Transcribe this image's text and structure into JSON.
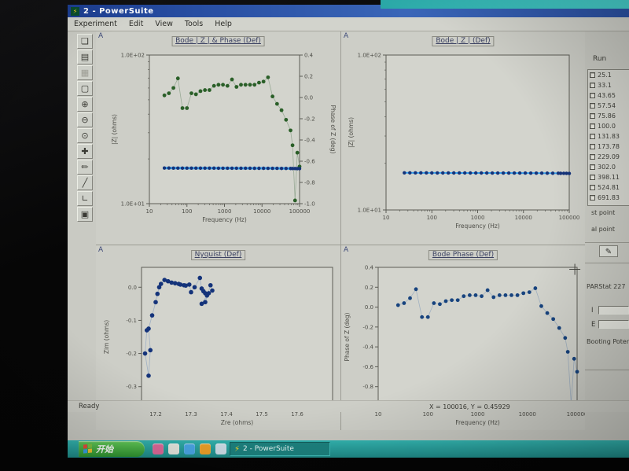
{
  "window": {
    "title": "2 - PowerSuite",
    "menu": [
      "Experiment",
      "Edit",
      "View",
      "Tools",
      "Help"
    ]
  },
  "toolbar": {
    "icons": [
      {
        "name": "new-document-icon",
        "glyph": "❏",
        "disabled": false
      },
      {
        "name": "open-file-icon",
        "glyph": "▤",
        "disabled": false
      },
      {
        "name": "print-icon",
        "glyph": "▦",
        "disabled": true
      },
      {
        "name": "select-region-icon",
        "glyph": "▢",
        "disabled": false
      },
      {
        "name": "zoom-in-icon",
        "glyph": "⊕",
        "disabled": false
      },
      {
        "name": "zoom-out-icon",
        "glyph": "⊖",
        "disabled": false
      },
      {
        "name": "zoom-window-icon",
        "glyph": "⊙",
        "disabled": false
      },
      {
        "name": "pan-icon",
        "glyph": "✚",
        "disabled": false
      },
      {
        "name": "pen-icon",
        "glyph": "✏",
        "disabled": false
      },
      {
        "name": "line-tool-icon",
        "glyph": "╱",
        "disabled": false
      },
      {
        "name": "axes-tool-icon",
        "glyph": "∟",
        "disabled": false
      },
      {
        "name": "color-tool-icon",
        "glyph": "▣",
        "disabled": false
      }
    ]
  },
  "sidebar": {
    "run_label": "Run",
    "runs": [
      "25.1",
      "33.1",
      "43.65",
      "57.54",
      "75.86",
      "100.0",
      "131.83",
      "173.78",
      "229.09",
      "302.0",
      "398.11",
      "524.81",
      "691.83"
    ],
    "start_point_label": "st point",
    "end_point_label": "al point",
    "instrument_label": "PARStat 227",
    "current_label": "I",
    "potential_label": "E",
    "booting_label": "Booting Potent",
    "eraser_glyph": "✎"
  },
  "status_bar": {
    "ready": "Ready",
    "coords": "X = 100016, Y = 0.45929"
  },
  "taskbar": {
    "start_label": "开始",
    "task_button_label": "2 - PowerSuite",
    "task_button_glyph": "⚡",
    "quicklaunch": [
      {
        "name": "quicklaunch-msn-icon",
        "color": "#e06a9a"
      },
      {
        "name": "quicklaunch-folder-icon",
        "color": "#e8e8e0"
      },
      {
        "name": "quicklaunch-ie-icon",
        "color": "#4aa8e8"
      },
      {
        "name": "quicklaunch-player-icon",
        "color": "#f0a228"
      },
      {
        "name": "quicklaunch-desktop-icon",
        "color": "#cfe0ea"
      }
    ]
  },
  "colors": {
    "titlebar_blue": "#1d3f94",
    "taskbar_teal": "#27a09c",
    "start_green": "#3fae3c",
    "phase_green": "#2a5f28",
    "impedance_blue_dot": "#14337a",
    "impedance_blue_line": "#35a0ef"
  },
  "chart_data": [
    {
      "type": "line",
      "title": "Bode | Z | & Phase (Def)",
      "corner_label": "A",
      "x": {
        "scale": "log",
        "min": 10,
        "max": 100000,
        "ticks": [
          10,
          100,
          1000,
          10000,
          100000
        ],
        "tick_labels": [
          "10",
          "100",
          "1000",
          "10000",
          "100000"
        ],
        "label": "Frequency (Hz)"
      },
      "y": {
        "scale": "log",
        "min": 10,
        "max": 100,
        "ticks": [
          10,
          100
        ],
        "tick_labels": [
          "1.0E+01",
          "1.0E+02"
        ],
        "label": "|Z| (ohms)"
      },
      "y2": {
        "scale": "linear",
        "min": -1.0,
        "max": 0.4,
        "ticks": [
          0.4,
          0.2,
          0,
          -0.2,
          -0.4,
          -0.6,
          -0.8,
          -1.0
        ],
        "tick_labels": [
          "0.4",
          "0.2",
          "0.0",
          "-0.2",
          "-0.4",
          "-0.6",
          "-0.8",
          "-1.0"
        ],
        "label": "Phase of Z (deg)"
      },
      "series": [
        {
          "name": "phase-of-z",
          "axis": "y2",
          "color": "#2a5f28",
          "line_color": "#9aab97",
          "line_width": 0.8,
          "dot_r": 2.4,
          "x": [
            25.1,
            33.1,
            43.7,
            57.5,
            75.9,
            100,
            131.8,
            173.8,
            229.1,
            302,
            398,
            525,
            692,
            912,
            1202,
            1585,
            2089,
            2754,
            3631,
            4786,
            6310,
            8318,
            10965,
            14454,
            19055,
            25119,
            33113,
            43652,
            57544,
            65000,
            75858,
            87096,
            100000
          ],
          "y": [
            0.02,
            0.04,
            0.09,
            0.18,
            -0.1,
            -0.1,
            0.04,
            0.03,
            0.06,
            0.07,
            0.07,
            0.11,
            0.12,
            0.12,
            0.11,
            0.17,
            0.1,
            0.12,
            0.12,
            0.12,
            0.12,
            0.14,
            0.15,
            0.19,
            0.01,
            -0.06,
            -0.12,
            -0.21,
            -0.31,
            -0.45,
            -0.97,
            -0.52,
            -0.65
          ]
        },
        {
          "name": "z-magnitude",
          "axis": "y",
          "color": "#14337a",
          "line_color": "#35a0ef",
          "line_width": 3,
          "dot_r": 2.2,
          "x": [
            25.1,
            33.1,
            43.7,
            57.5,
            75.9,
            100,
            131.8,
            173.8,
            229.1,
            302,
            398,
            525,
            692,
            912,
            1202,
            1585,
            2089,
            2754,
            3631,
            4786,
            6310,
            8318,
            10965,
            14454,
            19055,
            25119,
            33113,
            43652,
            57544,
            65000,
            75858,
            87096,
            100000
          ],
          "y": [
            17.36,
            17.36,
            17.35,
            17.35,
            17.35,
            17.34,
            17.34,
            17.34,
            17.33,
            17.33,
            17.33,
            17.33,
            17.32,
            17.32,
            17.32,
            17.32,
            17.31,
            17.31,
            17.31,
            17.31,
            17.3,
            17.3,
            17.3,
            17.29,
            17.29,
            17.28,
            17.27,
            17.26,
            17.25,
            17.24,
            17.23,
            17.22,
            17.2
          ]
        }
      ]
    },
    {
      "type": "line",
      "title": "Bode | Z | (Def)",
      "corner_label": "A",
      "x": {
        "scale": "log",
        "min": 10,
        "max": 100000,
        "ticks": [
          10,
          100,
          1000,
          10000,
          100000
        ],
        "tick_labels": [
          "10",
          "100",
          "1000",
          "10000",
          "100000"
        ],
        "label": "Frequency (Hz)"
      },
      "y": {
        "scale": "log",
        "min": 10,
        "max": 100,
        "ticks": [
          10,
          100
        ],
        "tick_labels": [
          "1.0E+01",
          "1.0E+02"
        ],
        "label": "|Z| (ohms)"
      },
      "series": [
        {
          "name": "z-magnitude",
          "axis": "y",
          "color": "#14337a",
          "line_color": "#35a0ef",
          "line_width": 2,
          "dot_r": 2.2,
          "x": [
            25.1,
            33.1,
            43.7,
            57.5,
            75.9,
            100,
            131.8,
            173.8,
            229.1,
            302,
            398,
            525,
            692,
            912,
            1202,
            1585,
            2089,
            2754,
            3631,
            4786,
            6310,
            8318,
            10965,
            14454,
            19055,
            25119,
            33113,
            43652,
            57544,
            65000,
            75858,
            87096,
            100000
          ],
          "y": [
            17.36,
            17.36,
            17.35,
            17.35,
            17.35,
            17.34,
            17.34,
            17.34,
            17.33,
            17.33,
            17.33,
            17.33,
            17.32,
            17.32,
            17.32,
            17.32,
            17.31,
            17.31,
            17.31,
            17.31,
            17.3,
            17.3,
            17.3,
            17.29,
            17.29,
            17.28,
            17.27,
            17.26,
            17.25,
            17.24,
            17.23,
            17.22,
            17.2
          ]
        }
      ]
    },
    {
      "type": "line",
      "title": "Nyquist (Def)",
      "corner_label": "A",
      "x": {
        "scale": "linear",
        "min": 17.16,
        "max": 17.7,
        "ticks": [
          17.2,
          17.3,
          17.4,
          17.5,
          17.6
        ],
        "tick_labels": [
          "17.2",
          "17.3",
          "17.4",
          "17.5",
          "17.6"
        ],
        "label": "Zre (ohms)"
      },
      "y": {
        "scale": "linear",
        "min": -0.36,
        "max": 0.06,
        "ticks": [
          0,
          -0.1,
          -0.2,
          -0.3
        ],
        "tick_labels": [
          "0.0",
          "-0.1",
          "-0.2",
          "-0.3"
        ],
        "label": "Zim (ohms)"
      },
      "series": [
        {
          "name": "nyquist-impedance",
          "axis": "y",
          "color": "#14337a",
          "line_color": "#9fb0c4",
          "line_width": 0.8,
          "dot_r": 2.8,
          "x": [
            17.175,
            17.17,
            17.18,
            17.185,
            17.18,
            17.19,
            17.2,
            17.205,
            17.21,
            17.215,
            17.225,
            17.235,
            17.245,
            17.255,
            17.265,
            17.27,
            17.28,
            17.285,
            17.295,
            17.3,
            17.31,
            17.325,
            17.33,
            17.335,
            17.34,
            17.345,
            17.33,
            17.35,
            17.34,
            17.355,
            17.36
          ],
          "y": [
            -0.13,
            -0.2,
            -0.267,
            -0.19,
            -0.125,
            -0.085,
            -0.045,
            -0.02,
            0.0,
            0.01,
            0.022,
            0.018,
            0.014,
            0.012,
            0.01,
            0.008,
            0.006,
            0.005,
            0.008,
            -0.015,
            0.0,
            0.028,
            -0.004,
            -0.012,
            -0.018,
            -0.025,
            -0.05,
            -0.018,
            -0.045,
            0.006,
            -0.01
          ]
        }
      ]
    },
    {
      "type": "line",
      "title": "Bode Phase (Def)",
      "corner_label": "A",
      "x": {
        "scale": "log",
        "min": 10,
        "max": 100000,
        "ticks": [
          10,
          100,
          1000,
          10000,
          100000
        ],
        "tick_labels": [
          "10",
          "100",
          "1000",
          "10000",
          "100000"
        ],
        "label": "Frequency (Hz)"
      },
      "y": {
        "scale": "linear",
        "min": -1.0,
        "max": 0.4,
        "ticks": [
          0.4,
          0.2,
          0,
          -0.2,
          -0.4,
          -0.6,
          -0.8,
          -1.0
        ],
        "tick_labels": [
          "0.4",
          "0.2",
          "0.0",
          "-0.2",
          "-0.4",
          "-0.6",
          "-0.8",
          "-1.0"
        ],
        "label": "Phase of Z (deg)"
      },
      "cursor": {
        "x": 90000,
        "y": 0.38
      },
      "series": [
        {
          "name": "phase-of-z",
          "axis": "y",
          "color": "#17437e",
          "line_color": "#a2b2c2",
          "line_width": 0.8,
          "dot_r": 2.4,
          "x": [
            25.1,
            33.1,
            43.7,
            57.5,
            75.9,
            100,
            131.8,
            173.8,
            229.1,
            302,
            398,
            525,
            692,
            912,
            1202,
            1585,
            2089,
            2754,
            3631,
            4786,
            6310,
            8318,
            10965,
            14454,
            19055,
            25119,
            33113,
            43652,
            57544,
            65000,
            75858,
            87096,
            100000
          ],
          "y": [
            0.02,
            0.04,
            0.09,
            0.18,
            -0.1,
            -0.1,
            0.04,
            0.03,
            0.06,
            0.07,
            0.07,
            0.11,
            0.12,
            0.12,
            0.11,
            0.17,
            0.1,
            0.12,
            0.12,
            0.12,
            0.12,
            0.14,
            0.15,
            0.19,
            0.01,
            -0.06,
            -0.12,
            -0.21,
            -0.31,
            -0.45,
            -0.97,
            -0.52,
            -0.65
          ]
        }
      ]
    }
  ]
}
